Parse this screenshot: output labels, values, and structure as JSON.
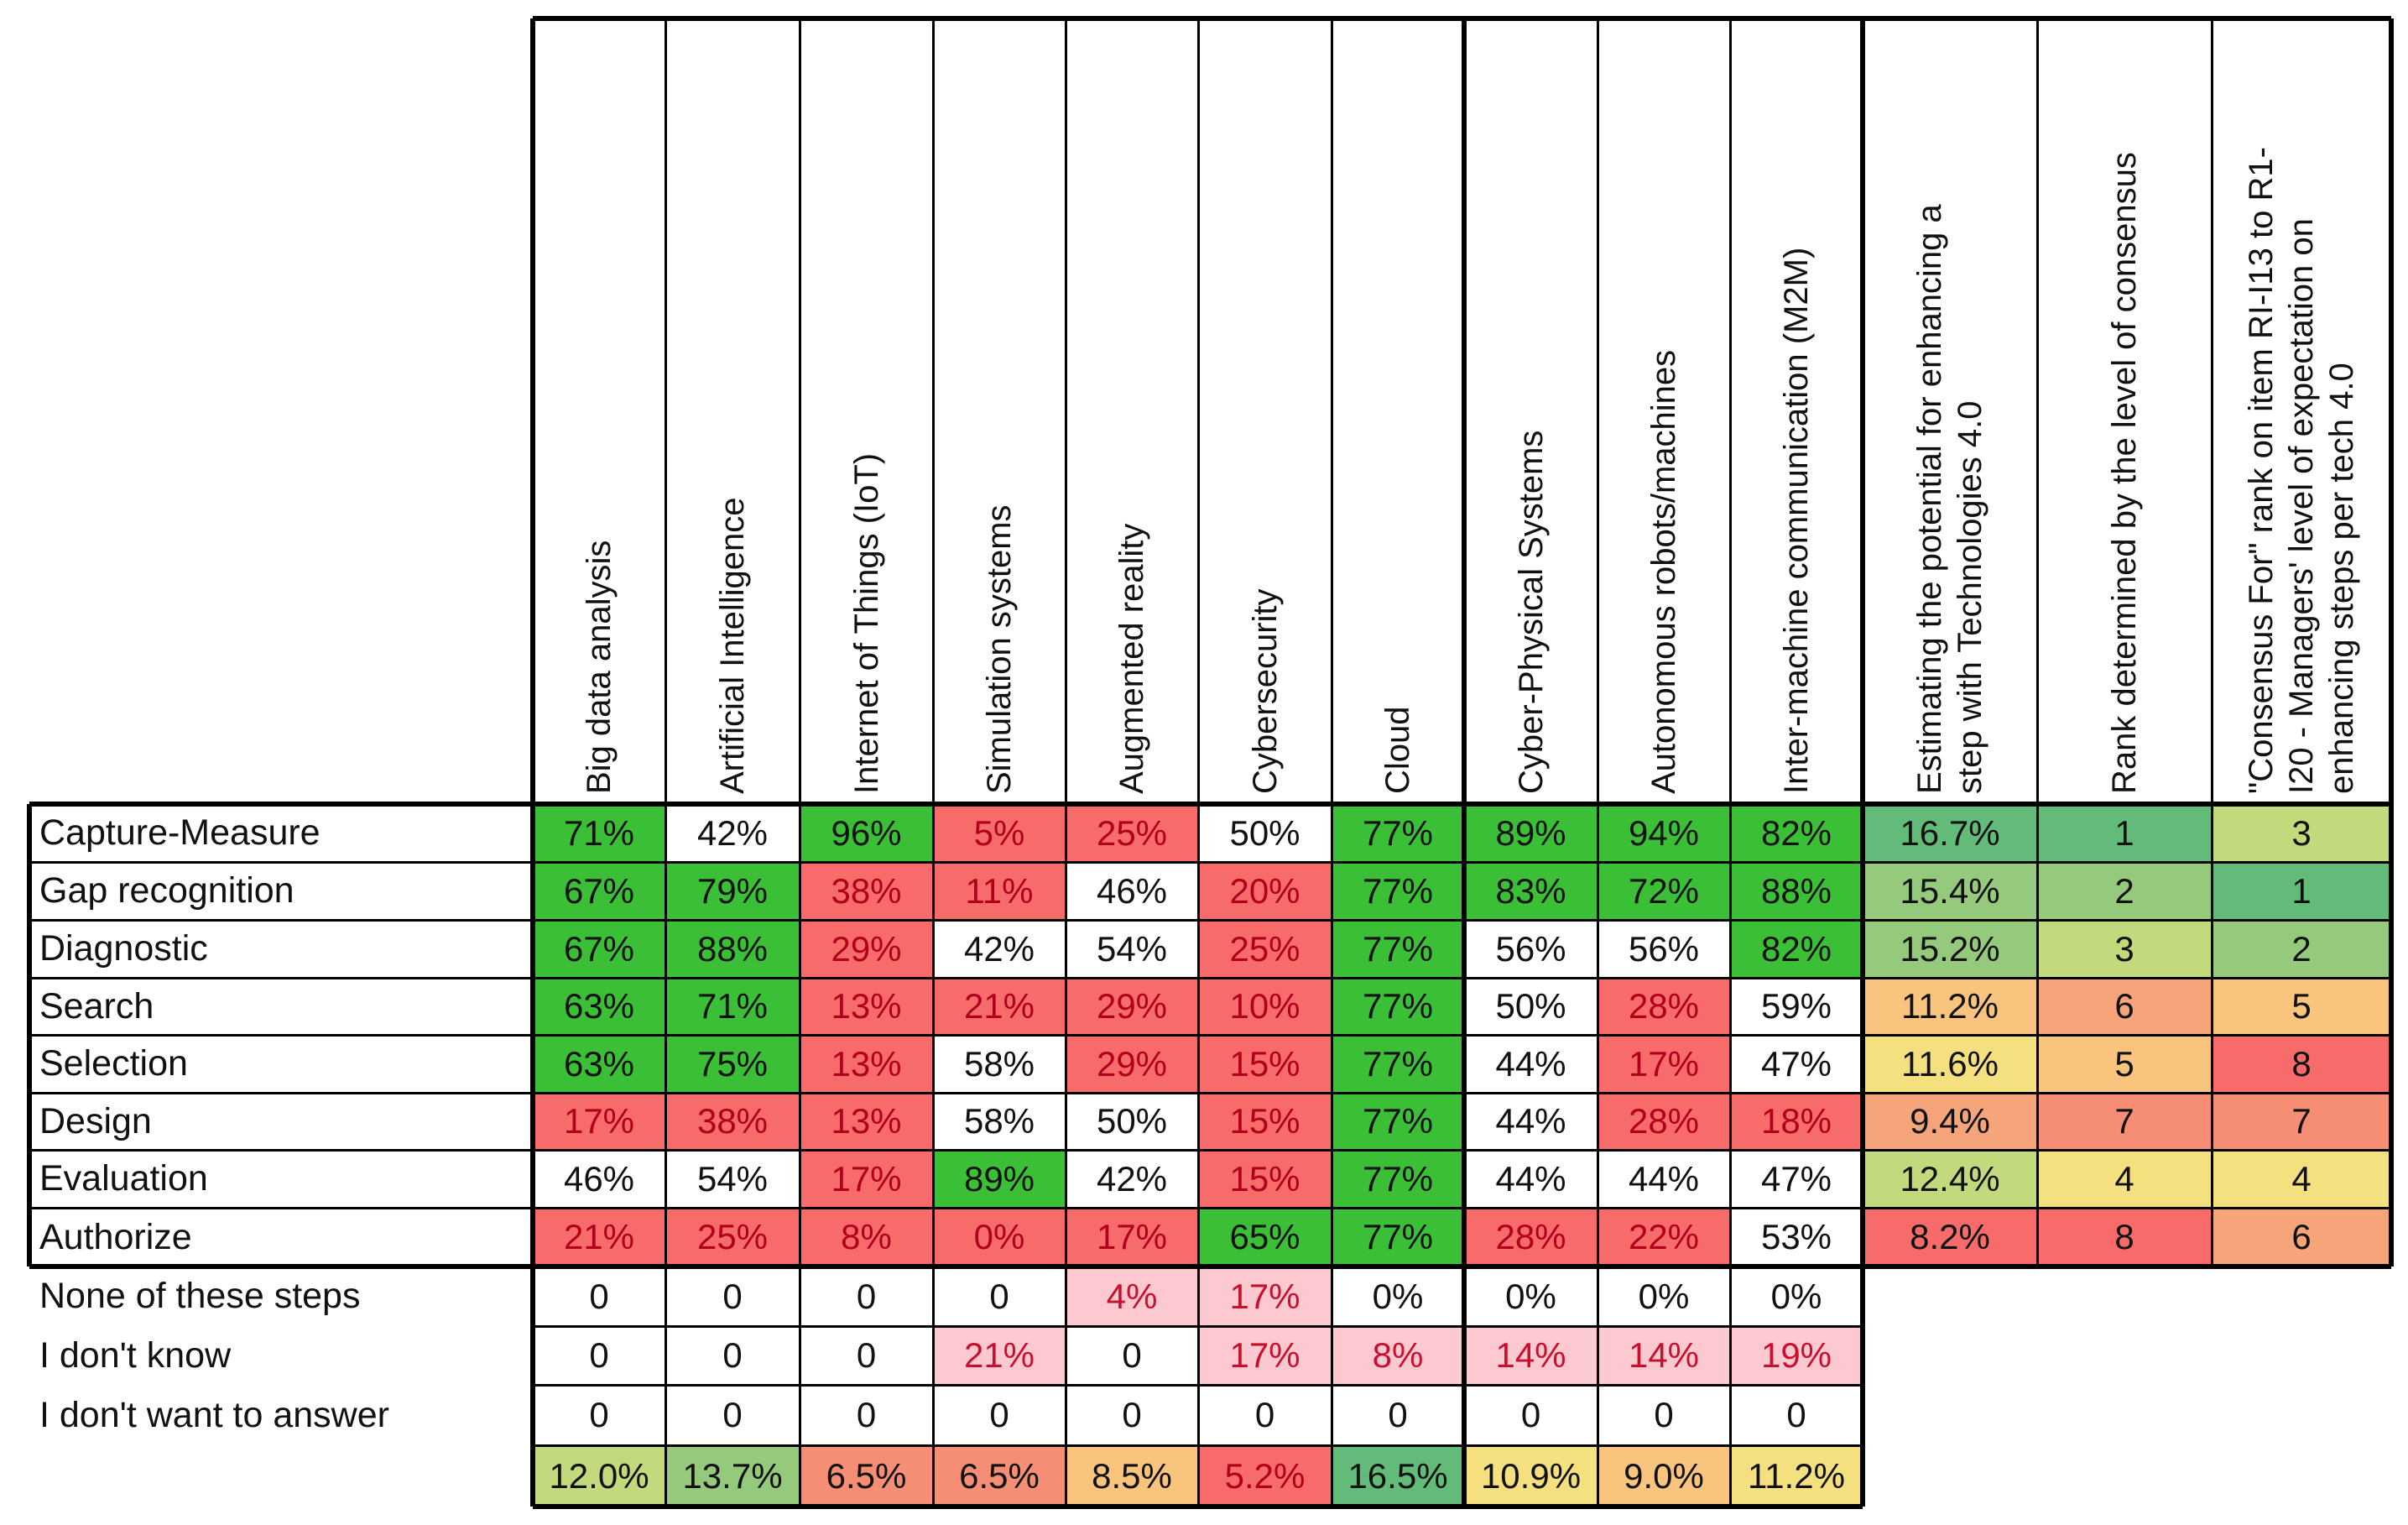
{
  "palette": {
    "green": "#3bbf36",
    "red": "#f76b6b",
    "pink": "#fdc9d0",
    "white": "#ffffff",
    "scale": {
      "dark_green": "#63bb7a",
      "mid_green": "#95c97c",
      "light_green": "#c2d97c",
      "yellow": "#f5e07f",
      "light_orange": "#f9c57e",
      "orange": "#f6a479",
      "red_orange": "#f58e74",
      "red": "#f0676a"
    }
  },
  "columns": [
    {
      "label": "Big data analysis",
      "lines": [
        "Big data analysis"
      ]
    },
    {
      "label": "Artificial Intelligence",
      "lines": [
        "Artificial Intelligence"
      ]
    },
    {
      "label": "Internet of Things (IoT)",
      "lines": [
        "Internet of Things (IoT)"
      ]
    },
    {
      "label": "Simulation systems",
      "lines": [
        "Simulation systems"
      ]
    },
    {
      "label": "Augmented reality",
      "lines": [
        "Augmented reality"
      ]
    },
    {
      "label": "Cybersecurity",
      "lines": [
        "Cybersecurity"
      ]
    },
    {
      "label": "Cloud",
      "lines": [
        "Cloud"
      ]
    },
    {
      "label": "Cyber-Physical Systems",
      "lines": [
        "Cyber-Physical Systems"
      ]
    },
    {
      "label": "Autonomous robots/machines",
      "lines": [
        "Autonomous robots/machines"
      ]
    },
    {
      "label": "Inter-machine communication (M2M)",
      "lines": [
        "Inter-machine communication (M2M)"
      ]
    }
  ],
  "summary_columns": [
    {
      "lines": [
        "Estimating the potential for enhancing a",
        "step with Technologies 4.0"
      ]
    },
    {
      "lines": [
        "Rank determined by the level of consensus"
      ]
    },
    {
      "lines": [
        "\"Consensus For\" rank on item RI-I13 to R1-",
        "I20 - Managers' level of expectation on",
        "enhancing steps per tech 4.0"
      ]
    }
  ],
  "step_rows": [
    {
      "label": "Capture-Measure",
      "cells": [
        {
          "v": "71%",
          "c": "green"
        },
        {
          "v": "42%",
          "c": "white"
        },
        {
          "v": "96%",
          "c": "green"
        },
        {
          "v": "5%",
          "c": "red"
        },
        {
          "v": "25%",
          "c": "red"
        },
        {
          "v": "50%",
          "c": "white"
        },
        {
          "v": "77%",
          "c": "green"
        },
        {
          "v": "89%",
          "c": "green"
        },
        {
          "v": "94%",
          "c": "green"
        },
        {
          "v": "82%",
          "c": "green"
        }
      ],
      "summary": [
        {
          "v": "16.7%",
          "c": "dark_green"
        },
        {
          "v": "1",
          "c": "dark_green"
        },
        {
          "v": "3",
          "c": "light_green"
        }
      ]
    },
    {
      "label": "Gap recognition",
      "cells": [
        {
          "v": "67%",
          "c": "green"
        },
        {
          "v": "79%",
          "c": "green"
        },
        {
          "v": "38%",
          "c": "red"
        },
        {
          "v": "11%",
          "c": "red"
        },
        {
          "v": "46%",
          "c": "white"
        },
        {
          "v": "20%",
          "c": "red"
        },
        {
          "v": "77%",
          "c": "green"
        },
        {
          "v": "83%",
          "c": "green"
        },
        {
          "v": "72%",
          "c": "green"
        },
        {
          "v": "88%",
          "c": "green"
        }
      ],
      "summary": [
        {
          "v": "15.4%",
          "c": "mid_green"
        },
        {
          "v": "2",
          "c": "mid_green"
        },
        {
          "v": "1",
          "c": "dark_green"
        }
      ]
    },
    {
      "label": "Diagnostic",
      "cells": [
        {
          "v": "67%",
          "c": "green"
        },
        {
          "v": "88%",
          "c": "green"
        },
        {
          "v": "29%",
          "c": "red"
        },
        {
          "v": "42%",
          "c": "white"
        },
        {
          "v": "54%",
          "c": "white"
        },
        {
          "v": "25%",
          "c": "red"
        },
        {
          "v": "77%",
          "c": "green"
        },
        {
          "v": "56%",
          "c": "white"
        },
        {
          "v": "56%",
          "c": "white"
        },
        {
          "v": "82%",
          "c": "green"
        }
      ],
      "summary": [
        {
          "v": "15.2%",
          "c": "mid_green"
        },
        {
          "v": "3",
          "c": "light_green"
        },
        {
          "v": "2",
          "c": "mid_green"
        }
      ]
    },
    {
      "label": "Search",
      "cells": [
        {
          "v": "63%",
          "c": "green"
        },
        {
          "v": "71%",
          "c": "green"
        },
        {
          "v": "13%",
          "c": "red"
        },
        {
          "v": "21%",
          "c": "red"
        },
        {
          "v": "29%",
          "c": "red"
        },
        {
          "v": "10%",
          "c": "red"
        },
        {
          "v": "77%",
          "c": "green"
        },
        {
          "v": "50%",
          "c": "white"
        },
        {
          "v": "28%",
          "c": "red"
        },
        {
          "v": "59%",
          "c": "white"
        }
      ],
      "summary": [
        {
          "v": "11.2%",
          "c": "light_orange"
        },
        {
          "v": "6",
          "c": "orange"
        },
        {
          "v": "5",
          "c": "light_orange"
        }
      ]
    },
    {
      "label": "Selection",
      "cells": [
        {
          "v": "63%",
          "c": "green"
        },
        {
          "v": "75%",
          "c": "green"
        },
        {
          "v": "13%",
          "c": "red"
        },
        {
          "v": "58%",
          "c": "white"
        },
        {
          "v": "29%",
          "c": "red"
        },
        {
          "v": "15%",
          "c": "red"
        },
        {
          "v": "77%",
          "c": "green"
        },
        {
          "v": "44%",
          "c": "white"
        },
        {
          "v": "17%",
          "c": "red"
        },
        {
          "v": "47%",
          "c": "white"
        }
      ],
      "summary": [
        {
          "v": "11.6%",
          "c": "yellow"
        },
        {
          "v": "5",
          "c": "light_orange"
        },
        {
          "v": "8",
          "c": "red"
        }
      ]
    },
    {
      "label": "Design",
      "cells": [
        {
          "v": "17%",
          "c": "red"
        },
        {
          "v": "38%",
          "c": "red"
        },
        {
          "v": "13%",
          "c": "red"
        },
        {
          "v": "58%",
          "c": "white"
        },
        {
          "v": "50%",
          "c": "white"
        },
        {
          "v": "15%",
          "c": "red"
        },
        {
          "v": "77%",
          "c": "green"
        },
        {
          "v": "44%",
          "c": "white"
        },
        {
          "v": "28%",
          "c": "red"
        },
        {
          "v": "18%",
          "c": "red"
        }
      ],
      "summary": [
        {
          "v": "9.4%",
          "c": "orange"
        },
        {
          "v": "7",
          "c": "red_orange"
        },
        {
          "v": "7",
          "c": "red_orange"
        }
      ]
    },
    {
      "label": "Evaluation",
      "cells": [
        {
          "v": "46%",
          "c": "white"
        },
        {
          "v": "54%",
          "c": "white"
        },
        {
          "v": "17%",
          "c": "red"
        },
        {
          "v": "89%",
          "c": "green"
        },
        {
          "v": "42%",
          "c": "white"
        },
        {
          "v": "15%",
          "c": "red"
        },
        {
          "v": "77%",
          "c": "green"
        },
        {
          "v": "44%",
          "c": "white"
        },
        {
          "v": "44%",
          "c": "white"
        },
        {
          "v": "47%",
          "c": "white"
        }
      ],
      "summary": [
        {
          "v": "12.4%",
          "c": "light_green"
        },
        {
          "v": "4",
          "c": "yellow"
        },
        {
          "v": "4",
          "c": "yellow"
        }
      ]
    },
    {
      "label": "Authorize",
      "cells": [
        {
          "v": "21%",
          "c": "red"
        },
        {
          "v": "25%",
          "c": "red"
        },
        {
          "v": "8%",
          "c": "red"
        },
        {
          "v": "0%",
          "c": "red"
        },
        {
          "v": "17%",
          "c": "red"
        },
        {
          "v": "65%",
          "c": "green"
        },
        {
          "v": "77%",
          "c": "green"
        },
        {
          "v": "28%",
          "c": "red"
        },
        {
          "v": "22%",
          "c": "red"
        },
        {
          "v": "53%",
          "c": "white"
        }
      ],
      "summary": [
        {
          "v": "8.2%",
          "c": "red"
        },
        {
          "v": "8",
          "c": "red"
        },
        {
          "v": "6",
          "c": "orange"
        }
      ]
    }
  ],
  "extra_rows": [
    {
      "label": "None of these steps",
      "cells": [
        {
          "v": "0",
          "c": "white"
        },
        {
          "v": "0",
          "c": "white"
        },
        {
          "v": "0",
          "c": "white"
        },
        {
          "v": "0",
          "c": "white"
        },
        {
          "v": "4%",
          "c": "pink"
        },
        {
          "v": "17%",
          "c": "pink"
        },
        {
          "v": "0%",
          "c": "white"
        },
        {
          "v": "0%",
          "c": "white"
        },
        {
          "v": "0%",
          "c": "white"
        },
        {
          "v": "0%",
          "c": "white"
        }
      ]
    },
    {
      "label": "I don't know",
      "cells": [
        {
          "v": "0",
          "c": "white"
        },
        {
          "v": "0",
          "c": "white"
        },
        {
          "v": "0",
          "c": "white"
        },
        {
          "v": "21%",
          "c": "pink"
        },
        {
          "v": "0",
          "c": "white"
        },
        {
          "v": "17%",
          "c": "pink"
        },
        {
          "v": "8%",
          "c": "pink"
        },
        {
          "v": "14%",
          "c": "pink"
        },
        {
          "v": "14%",
          "c": "pink"
        },
        {
          "v": "19%",
          "c": "pink"
        }
      ]
    },
    {
      "label": "I don't want to answer",
      "cells": [
        {
          "v": "0",
          "c": "white"
        },
        {
          "v": "0",
          "c": "white"
        },
        {
          "v": "0",
          "c": "white"
        },
        {
          "v": "0",
          "c": "white"
        },
        {
          "v": "0",
          "c": "white"
        },
        {
          "v": "0",
          "c": "white"
        },
        {
          "v": "0",
          "c": "white"
        },
        {
          "v": "0",
          "c": "white"
        },
        {
          "v": "0",
          "c": "white"
        },
        {
          "v": "0",
          "c": "white"
        }
      ]
    }
  ],
  "totals_row": {
    "cells": [
      {
        "v": "12.0%",
        "c": "light_green"
      },
      {
        "v": "13.7%",
        "c": "mid_green"
      },
      {
        "v": "6.5%",
        "c": "red_orange"
      },
      {
        "v": "6.5%",
        "c": "red_orange"
      },
      {
        "v": "8.5%",
        "c": "light_orange"
      },
      {
        "v": "5.2%",
        "c": "red"
      },
      {
        "v": "16.5%",
        "c": "dark_green"
      },
      {
        "v": "10.9%",
        "c": "yellow"
      },
      {
        "v": "9.0%",
        "c": "light_orange"
      },
      {
        "v": "11.2%",
        "c": "yellow"
      }
    ]
  }
}
